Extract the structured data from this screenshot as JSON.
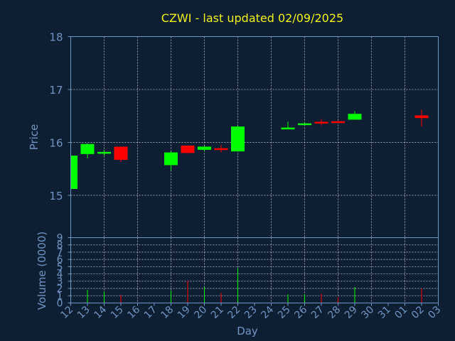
{
  "chart_data": {
    "type": "candlestick",
    "title": "CZWI - last updated 02/09/2025",
    "xlabel": "Day",
    "price": {
      "ylabel": "Price",
      "ylim": [
        14.2,
        18
      ],
      "yticks": [
        15,
        16,
        17,
        18
      ]
    },
    "volume": {
      "ylabel": "Volume (0000)",
      "ylim": [
        0,
        9
      ],
      "yticks": [
        0,
        1,
        2,
        3,
        4,
        5,
        6,
        7,
        8,
        9
      ]
    },
    "x_ticks": [
      "12",
      "13",
      "14",
      "15",
      "16",
      "17",
      "18",
      "19",
      "20",
      "21",
      "22",
      "23",
      "24",
      "25",
      "26",
      "27",
      "28",
      "29",
      "30",
      "31",
      "01",
      "02",
      "03"
    ],
    "grid": true,
    "colors": {
      "up": "#00ff00",
      "down": "#ff0000",
      "title": "#f2f21a",
      "axis": "#6f95c4",
      "background": "#0f1f33"
    },
    "candles": [
      {
        "day": "12",
        "open": 15.12,
        "close": 15.75,
        "high": 15.75,
        "low": 15.1,
        "volume": 1.9
      },
      {
        "day": "13",
        "open": 15.78,
        "close": 15.97,
        "high": 15.98,
        "low": 15.7,
        "volume": 1.8
      },
      {
        "day": "14",
        "open": 15.8,
        "close": 15.82,
        "high": 15.86,
        "low": 15.75,
        "volume": 1.6
      },
      {
        "day": "15",
        "open": 15.92,
        "close": 15.67,
        "high": 15.92,
        "low": 15.63,
        "volume": 1.1
      },
      {
        "day": "18",
        "open": 15.57,
        "close": 15.81,
        "high": 15.83,
        "low": 15.47,
        "volume": 1.7
      },
      {
        "day": "19",
        "open": 15.94,
        "close": 15.8,
        "high": 15.94,
        "low": 15.78,
        "volume": 3.1
      },
      {
        "day": "20",
        "open": 15.86,
        "close": 15.92,
        "high": 15.93,
        "low": 15.83,
        "volume": 2.2
      },
      {
        "day": "21",
        "open": 15.89,
        "close": 15.87,
        "high": 15.95,
        "low": 15.81,
        "volume": 1.4
      },
      {
        "day": "22",
        "open": 15.83,
        "close": 16.3,
        "high": 16.32,
        "low": 15.83,
        "volume": 4.8
      },
      {
        "day": "25",
        "open": 16.26,
        "close": 16.28,
        "high": 16.39,
        "low": 16.26,
        "volume": 1.2
      },
      {
        "day": "26",
        "open": 16.34,
        "close": 16.36,
        "high": 16.37,
        "low": 16.33,
        "volume": 1.2
      },
      {
        "day": "27",
        "open": 16.39,
        "close": 16.36,
        "high": 16.44,
        "low": 16.32,
        "volume": 1.3
      },
      {
        "day": "28",
        "open": 16.4,
        "close": 16.38,
        "high": 16.41,
        "low": 16.37,
        "volume": 0.8
      },
      {
        "day": "29",
        "open": 16.43,
        "close": 16.54,
        "high": 16.59,
        "low": 16.43,
        "volume": 2.2
      },
      {
        "day": "02",
        "open": 16.51,
        "close": 16.46,
        "high": 16.62,
        "low": 16.3,
        "volume": 2.0
      }
    ]
  }
}
